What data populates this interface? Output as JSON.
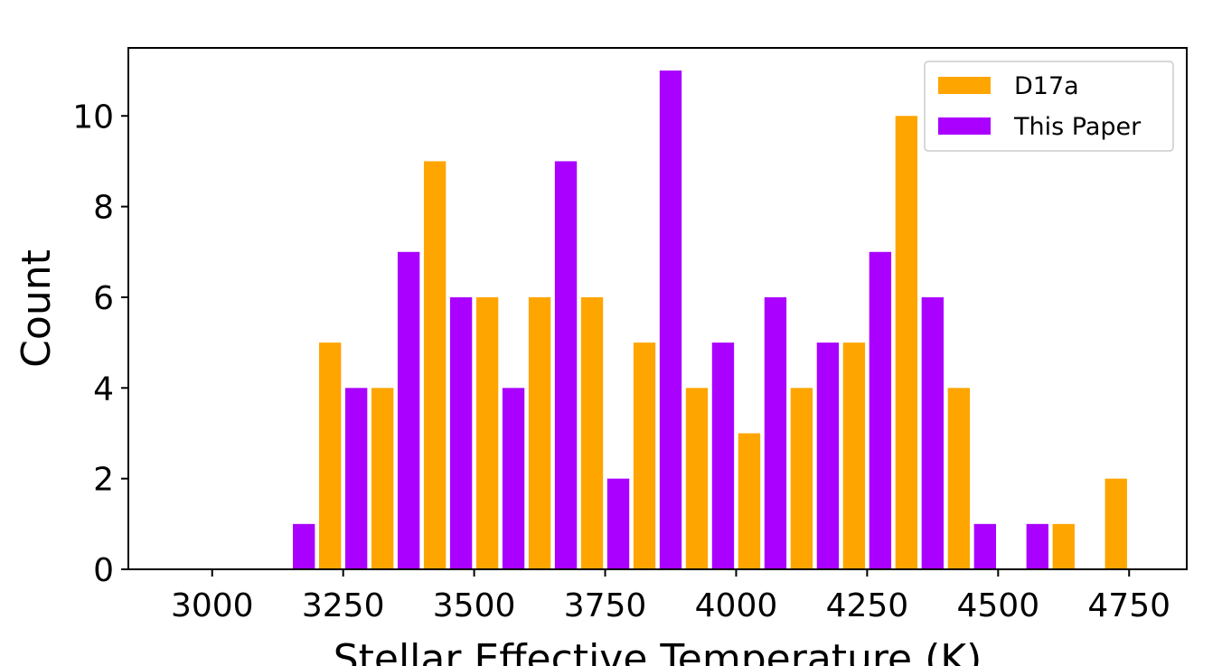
{
  "chart_data": {
    "type": "bar",
    "xlabel": "Stellar Effective Temperature (K)",
    "ylabel": "Count",
    "xlim": [
      2840,
      4860
    ],
    "ylim": [
      0,
      11.5
    ],
    "xticks": [
      3000,
      3250,
      3500,
      3750,
      4000,
      4250,
      4500,
      4750
    ],
    "yticks": [
      0,
      2,
      4,
      6,
      8,
      10
    ],
    "grid": false,
    "legend_position": "top-right",
    "series": [
      {
        "name": "D17a",
        "color": "#FFA500",
        "x": [
          3225,
          3325,
          3425,
          3525,
          3625,
          3725,
          3825,
          3925,
          4025,
          4125,
          4225,
          4325,
          4425,
          4525,
          4625,
          4725
        ],
        "values": [
          5,
          4,
          9,
          6,
          6,
          6,
          5,
          4,
          3,
          4,
          5,
          10,
          4,
          0,
          1,
          2
        ]
      },
      {
        "name": "This Paper",
        "color": "#AA00FF",
        "x": [
          3175,
          3275,
          3375,
          3475,
          3575,
          3675,
          3775,
          3875,
          3975,
          4075,
          4175,
          4275,
          4375,
          4475,
          4575
        ],
        "values": [
          1,
          4,
          7,
          6,
          4,
          9,
          2,
          11,
          5,
          6,
          5,
          7,
          6,
          1,
          1
        ]
      }
    ]
  }
}
